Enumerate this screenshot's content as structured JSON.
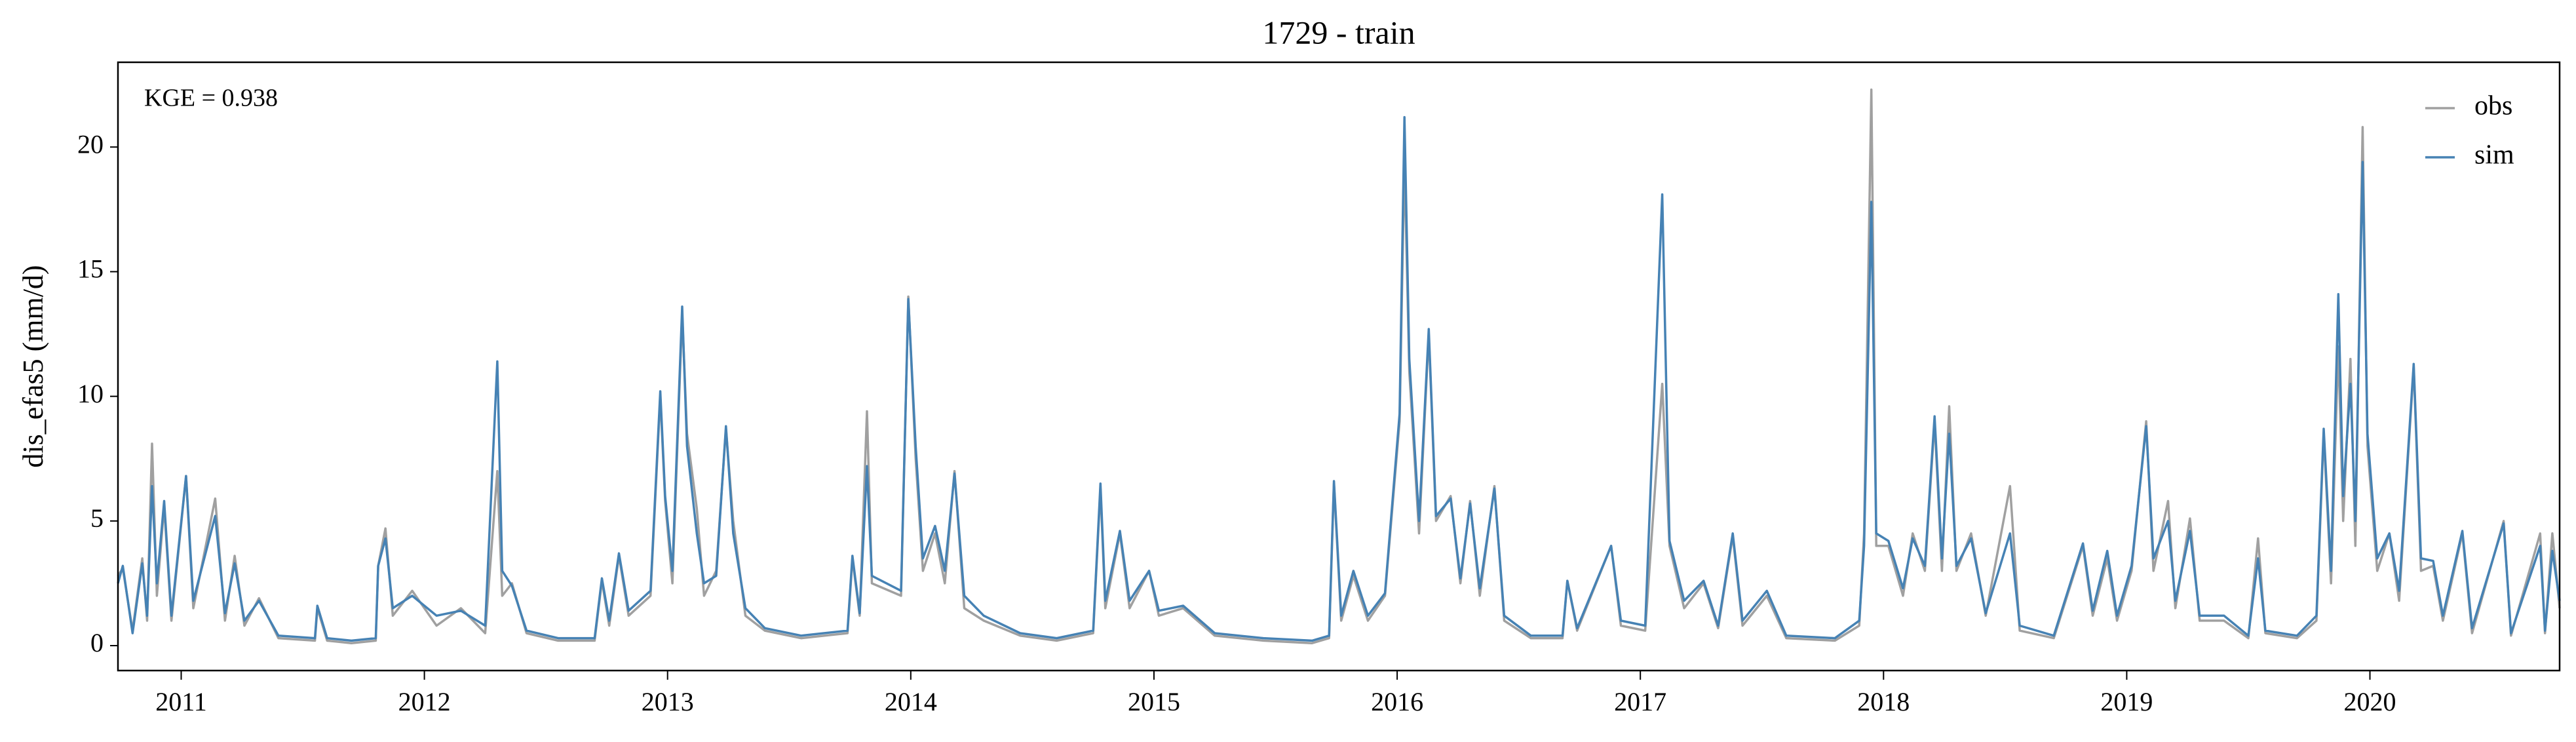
{
  "chart_data": {
    "type": "line",
    "title": "1729 - train",
    "ylabel": "dis_efas5 (mm/d)",
    "annotation": "KGE = 0.938",
    "legend": "upper right",
    "grid": false,
    "xlim": [
      2010.74,
      2020.78
    ],
    "xticks": [
      2011,
      2012,
      2013,
      2014,
      2015,
      2016,
      2017,
      2018,
      2019,
      2020
    ],
    "ylim": [
      -1,
      23.4
    ],
    "yticks": [
      0,
      5,
      10,
      15,
      20
    ],
    "x": [
      2010.74,
      2010.76,
      2010.8,
      2010.84,
      2010.86,
      2010.88,
      2010.9,
      2010.93,
      2010.96,
      2011.02,
      2011.05,
      2011.14,
      2011.18,
      2011.22,
      2011.26,
      2011.32,
      2011.4,
      2011.55,
      2011.56,
      2011.6,
      2011.7,
      2011.8,
      2011.81,
      2011.84,
      2011.87,
      2011.95,
      2012.05,
      2012.15,
      2012.25,
      2012.3,
      2012.32,
      2012.36,
      2012.42,
      2012.55,
      2012.7,
      2012.73,
      2012.76,
      2012.8,
      2012.84,
      2012.93,
      2012.97,
      2012.99,
      2013.02,
      2013.06,
      2013.08,
      2013.12,
      2013.15,
      2013.2,
      2013.24,
      2013.27,
      2013.32,
      2013.4,
      2013.55,
      2013.74,
      2013.76,
      2013.79,
      2013.82,
      2013.84,
      2013.96,
      2013.99,
      2014.02,
      2014.05,
      2014.1,
      2014.14,
      2014.18,
      2014.22,
      2014.3,
      2014.45,
      2014.6,
      2014.75,
      2014.78,
      2014.8,
      2014.86,
      2014.9,
      2014.98,
      2015.02,
      2015.12,
      2015.25,
      2015.45,
      2015.65,
      2015.72,
      2015.74,
      2015.77,
      2015.82,
      2015.88,
      2015.95,
      2016.01,
      2016.03,
      2016.05,
      2016.09,
      2016.13,
      2016.16,
      2016.22,
      2016.26,
      2016.3,
      2016.34,
      2016.4,
      2016.44,
      2016.55,
      2016.68,
      2016.7,
      2016.74,
      2016.88,
      2016.92,
      2017.02,
      2017.09,
      2017.12,
      2017.18,
      2017.26,
      2017.32,
      2017.38,
      2017.42,
      2017.52,
      2017.6,
      2017.8,
      2017.9,
      2017.92,
      2017.95,
      2017.97,
      2018.02,
      2018.08,
      2018.12,
      2018.17,
      2018.21,
      2018.24,
      2018.27,
      2018.3,
      2018.36,
      2018.42,
      2018.52,
      2018.56,
      2018.7,
      2018.82,
      2018.86,
      2018.92,
      2018.96,
      2019.02,
      2019.08,
      2019.11,
      2019.17,
      2019.2,
      2019.26,
      2019.3,
      2019.4,
      2019.5,
      2019.54,
      2019.57,
      2019.7,
      2019.78,
      2019.81,
      2019.84,
      2019.87,
      2019.89,
      2019.92,
      2019.94,
      2019.97,
      2019.99,
      2020.03,
      2020.08,
      2020.12,
      2020.18,
      2020.21,
      2020.26,
      2020.3,
      2020.38,
      2020.42,
      2020.55,
      2020.58,
      2020.7,
      2020.72,
      2020.75,
      2020.78
    ],
    "series": [
      {
        "name": "obs",
        "color": "#a0a0a0",
        "values": [
          2.8,
          3.1,
          0.6,
          3.5,
          1.0,
          8.1,
          2.0,
          5.6,
          1.0,
          6.8,
          1.5,
          5.9,
          1.0,
          3.6,
          0.8,
          1.9,
          0.3,
          0.2,
          1.5,
          0.2,
          0.1,
          0.2,
          3.2,
          4.7,
          1.2,
          2.2,
          0.8,
          1.5,
          0.5,
          7.0,
          2.0,
          2.5,
          0.5,
          0.2,
          0.2,
          2.6,
          0.8,
          3.6,
          1.2,
          2.0,
          10.0,
          5.8,
          2.5,
          13.3,
          8.5,
          5.5,
          2.0,
          3.0,
          8.7,
          5.0,
          1.2,
          0.6,
          0.3,
          0.5,
          3.5,
          1.2,
          9.4,
          2.5,
          2.0,
          14.0,
          7.5,
          3.0,
          4.5,
          2.5,
          7.0,
          1.5,
          1.0,
          0.4,
          0.2,
          0.5,
          6.3,
          1.5,
          4.5,
          1.5,
          3.0,
          1.2,
          1.5,
          0.4,
          0.2,
          0.1,
          0.3,
          6.5,
          1.0,
          2.8,
          1.0,
          2.0,
          9.0,
          19.5,
          11.0,
          4.5,
          12.5,
          5.0,
          6.0,
          2.5,
          5.8,
          2.0,
          6.4,
          1.0,
          0.3,
          0.3,
          2.6,
          0.6,
          4.0,
          0.8,
          0.6,
          10.5,
          4.0,
          1.5,
          2.5,
          0.7,
          4.4,
          0.8,
          2.0,
          0.3,
          0.2,
          0.8,
          4.5,
          22.3,
          4.0,
          4.0,
          2.0,
          4.5,
          3.0,
          9.0,
          3.0,
          9.6,
          3.0,
          4.5,
          1.2,
          6.4,
          0.6,
          0.3,
          4.0,
          1.2,
          3.5,
          1.0,
          3.0,
          9.0,
          3.0,
          5.8,
          1.5,
          5.1,
          1.0,
          1.0,
          0.3,
          4.3,
          0.5,
          0.3,
          1.0,
          8.5,
          2.5,
          12.0,
          5.0,
          11.5,
          4.0,
          20.8,
          8.0,
          3.0,
          4.5,
          1.8,
          11.2,
          3.0,
          3.2,
          1.0,
          4.5,
          0.5,
          5.0,
          0.4,
          4.5,
          0.5,
          4.5,
          1.5
        ]
      },
      {
        "name": "sim",
        "color": "#4682b4",
        "values": [
          2.5,
          3.2,
          0.5,
          3.3,
          1.2,
          6.4,
          2.5,
          5.8,
          1.2,
          6.8,
          1.8,
          5.2,
          1.3,
          3.3,
          1.0,
          1.8,
          0.4,
          0.3,
          1.6,
          0.3,
          0.2,
          0.3,
          3.2,
          4.3,
          1.5,
          2.0,
          1.2,
          1.4,
          0.8,
          11.4,
          3.0,
          2.4,
          0.6,
          0.3,
          0.3,
          2.7,
          1.0,
          3.7,
          1.4,
          2.2,
          10.2,
          6.0,
          3.0,
          13.6,
          8.0,
          4.5,
          2.5,
          2.8,
          8.8,
          4.5,
          1.5,
          0.7,
          0.4,
          0.6,
          3.6,
          1.3,
          7.2,
          2.8,
          2.2,
          13.9,
          8.0,
          3.5,
          4.8,
          3.0,
          6.9,
          2.0,
          1.2,
          0.5,
          0.3,
          0.6,
          6.5,
          1.8,
          4.6,
          1.8,
          3.0,
          1.4,
          1.6,
          0.5,
          0.3,
          0.2,
          0.4,
          6.6,
          1.2,
          3.0,
          1.2,
          2.1,
          9.3,
          21.2,
          11.5,
          5.0,
          12.7,
          5.2,
          5.9,
          2.7,
          5.7,
          2.3,
          6.3,
          1.2,
          0.4,
          0.4,
          2.6,
          0.7,
          4.0,
          1.0,
          0.8,
          18.1,
          4.2,
          1.8,
          2.6,
          0.8,
          4.5,
          1.0,
          2.2,
          0.4,
          0.3,
          1.0,
          4.0,
          17.8,
          4.5,
          4.2,
          2.3,
          4.3,
          3.2,
          9.2,
          3.5,
          8.5,
          3.2,
          4.3,
          1.3,
          4.5,
          0.8,
          0.4,
          4.1,
          1.4,
          3.8,
          1.2,
          3.2,
          8.8,
          3.5,
          5.0,
          1.8,
          4.6,
          1.2,
          1.2,
          0.4,
          3.5,
          0.6,
          0.4,
          1.2,
          8.7,
          3.0,
          14.1,
          6.0,
          10.5,
          5.0,
          19.4,
          8.5,
          3.5,
          4.5,
          2.2,
          11.3,
          3.5,
          3.4,
          1.2,
          4.6,
          0.7,
          4.9,
          0.5,
          4.0,
          0.6,
          3.8,
          1.8
        ]
      }
    ]
  }
}
